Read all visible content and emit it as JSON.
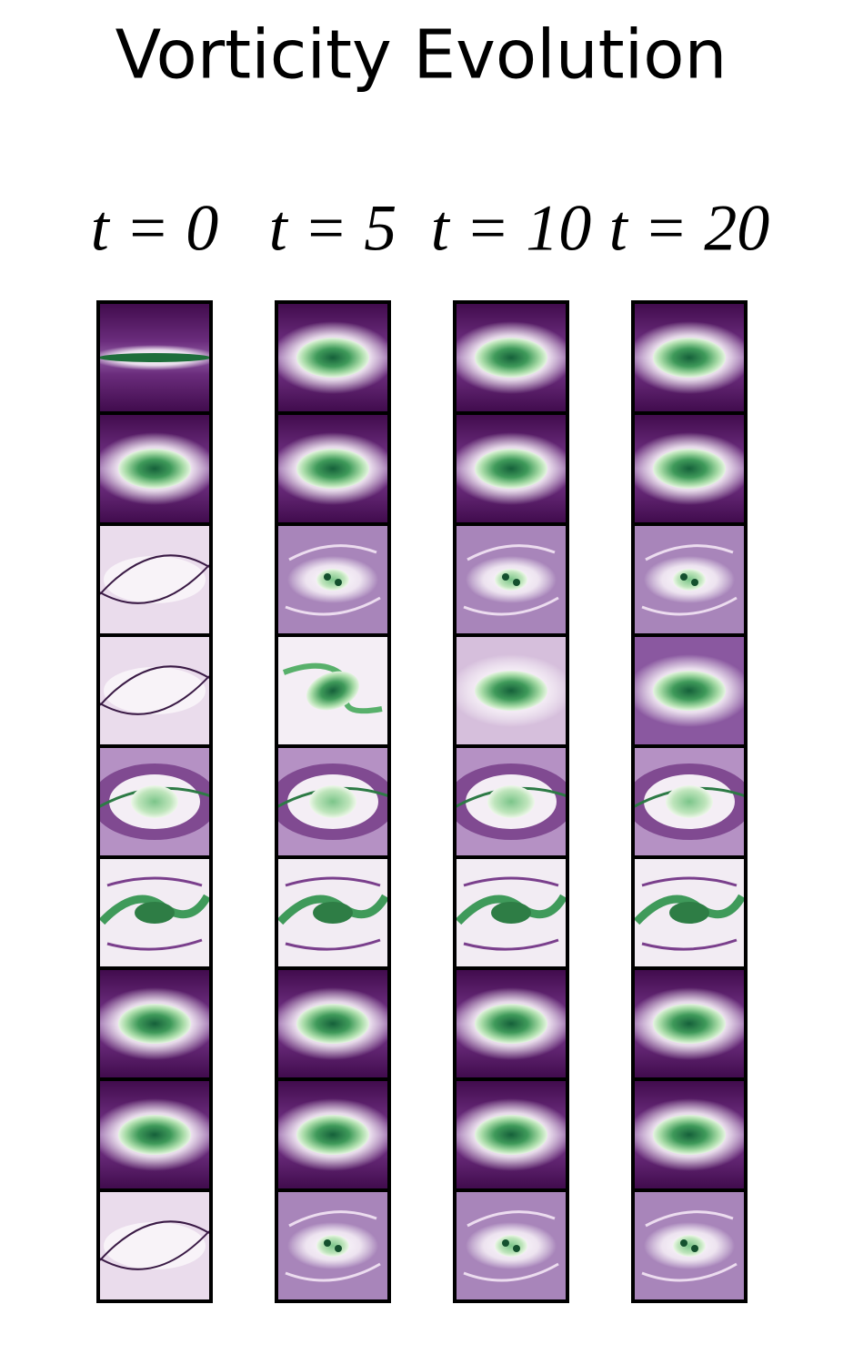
{
  "title": "Vorticity Evolution",
  "columns": [
    "t = 0",
    "t = 5",
    "t = 10",
    "t = 20"
  ]
}
